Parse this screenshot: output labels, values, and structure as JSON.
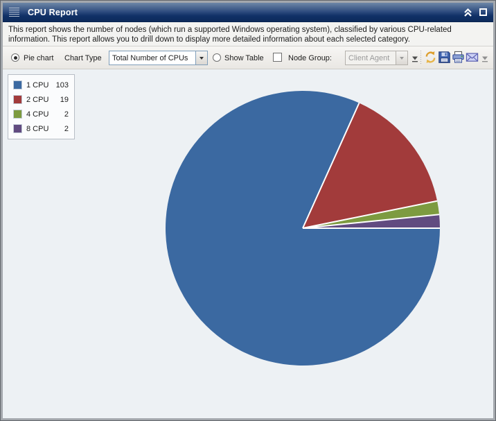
{
  "window": {
    "title": "CPU Report"
  },
  "description": "This report shows the number of nodes (which run a supported Windows operating system), classified by various CPU-related information. This report allows you to drill down to display more detailed information about each selected category.",
  "toolbar": {
    "pie_chart_radio": {
      "label": "Pie chart",
      "selected": true
    },
    "chart_type_label": "Chart Type",
    "chart_type_select": {
      "value": "Total Number of CPUs"
    },
    "show_table_radio": {
      "label": "Show Table",
      "selected": false
    },
    "node_group_checkbox": {
      "checked": false
    },
    "node_group_label": "Node Group:",
    "node_group_select": {
      "value": "Client Agent",
      "disabled": true
    },
    "action_icons": [
      "refresh-icon",
      "save-icon",
      "print-icon",
      "email-icon"
    ]
  },
  "titlebar_icons": [
    "grip-icon",
    "collapse-icon",
    "window-icon"
  ],
  "colors": {
    "titlebar_dark": "#0d2b5b",
    "chart_background": "#edf1f4"
  },
  "chart_data": {
    "type": "pie",
    "title": "CPU Report",
    "categories": [
      "1 CPU",
      "2 CPU",
      "4 CPU",
      "8 CPU"
    ],
    "values": [
      103,
      19,
      2,
      2
    ],
    "colors": [
      "#3b69a1",
      "#a23b3b",
      "#7d9b40",
      "#614b80"
    ],
    "legend_position": "top-left",
    "start_angle": "east",
    "direction": "clockwise",
    "separator_color": "#ffffff"
  }
}
